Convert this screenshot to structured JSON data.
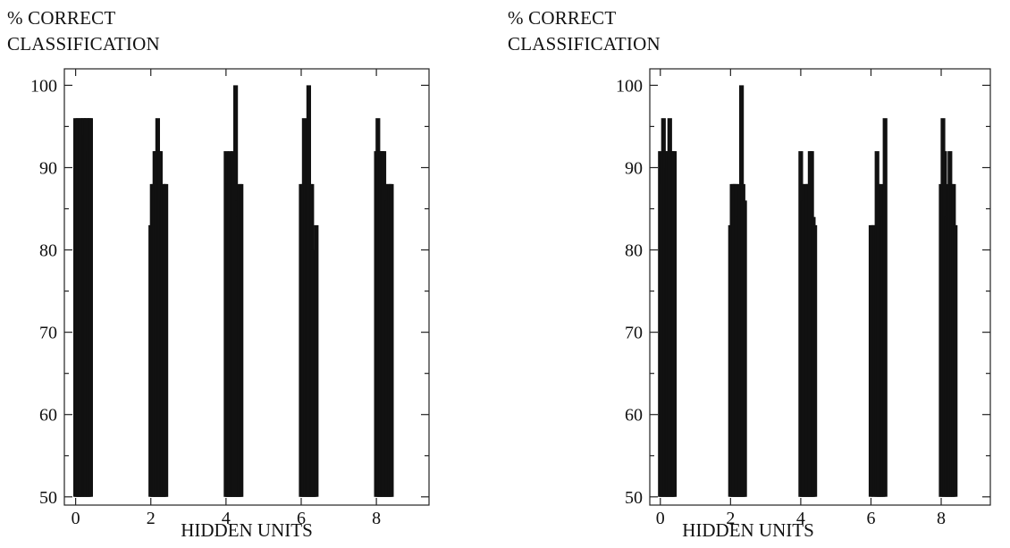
{
  "chart_data": [
    {
      "type": "bar",
      "ylabel": [
        "% CORRECT",
        "CLASSIFICATION"
      ],
      "xlabel": "HIDDEN UNITS",
      "xlim": [
        -0.3,
        9.4
      ],
      "ylim": [
        49,
        102
      ],
      "x_ticks": [
        0,
        2,
        4,
        6,
        8
      ],
      "y_ticks": [
        50,
        60,
        70,
        80,
        90,
        100
      ],
      "bar_base": 50,
      "grid": false,
      "groups": [
        {
          "hidden_units": 0,
          "x_range": [
            0,
            0.4
          ],
          "values": [
            96,
            90,
            96,
            88,
            96,
            92,
            96,
            96,
            94,
            96,
            96,
            92,
            96,
            96
          ]
        },
        {
          "hidden_units": 2,
          "x_range": [
            2,
            2.4
          ],
          "values": [
            83,
            88,
            88,
            92,
            92,
            96,
            92,
            92,
            86,
            88,
            88,
            88
          ]
        },
        {
          "hidden_units": 4,
          "x_range": [
            4,
            4.4
          ],
          "values": [
            92,
            88,
            88,
            92,
            84,
            92,
            90,
            100,
            86,
            84,
            88,
            88
          ]
        },
        {
          "hidden_units": 6,
          "x_range": [
            6,
            6.4
          ],
          "values": [
            88,
            88,
            96,
            88,
            92,
            100,
            88,
            88,
            80,
            79,
            83
          ]
        },
        {
          "hidden_units": 8,
          "x_range": [
            8,
            8.4
          ],
          "values": [
            92,
            96,
            92,
            92,
            92,
            92,
            88,
            86,
            88,
            88,
            88
          ]
        }
      ]
    },
    {
      "type": "bar",
      "ylabel": [
        "% CORRECT",
        "CLASSIFICATION"
      ],
      "xlabel": "HIDDEN UNITS",
      "xlim": [
        -0.3,
        9.4
      ],
      "ylim": [
        49,
        102
      ],
      "x_ticks": [
        0,
        2,
        4,
        6,
        8
      ],
      "y_ticks": [
        50,
        60,
        70,
        80,
        90,
        100
      ],
      "bar_base": 50,
      "grid": false,
      "groups": [
        {
          "hidden_units": 0,
          "x_range": [
            0,
            0.4
          ],
          "values": [
            92,
            88,
            96,
            92,
            90,
            92,
            96,
            92,
            92,
            92
          ]
        },
        {
          "hidden_units": 2,
          "x_range": [
            2,
            2.4
          ],
          "values": [
            83,
            88,
            88,
            88,
            88,
            84,
            88,
            100,
            88,
            86
          ]
        },
        {
          "hidden_units": 4,
          "x_range": [
            4,
            4.4
          ],
          "values": [
            92,
            88,
            86,
            88,
            88,
            88,
            92,
            92,
            84,
            83
          ]
        },
        {
          "hidden_units": 6,
          "x_range": [
            6,
            6.4
          ],
          "values": [
            83,
            83,
            83,
            92,
            88,
            88,
            84,
            96
          ]
        },
        {
          "hidden_units": 8,
          "x_range": [
            8,
            8.4
          ],
          "values": [
            88,
            96,
            92,
            84,
            88,
            92,
            88,
            88,
            83
          ]
        }
      ]
    }
  ]
}
